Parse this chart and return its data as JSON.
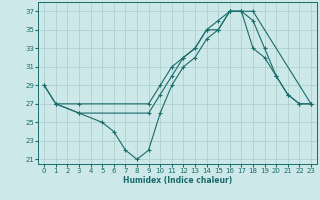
{
  "xlabel": "Humidex (Indice chaleur)",
  "bg_color": "#cce8e8",
  "line_color": "#1a6b6b",
  "grid_color": "#aacccc",
  "xlim": [
    -0.5,
    23.5
  ],
  "ylim": [
    20.5,
    38.0
  ],
  "xticks": [
    0,
    1,
    2,
    3,
    4,
    5,
    6,
    7,
    8,
    9,
    10,
    11,
    12,
    13,
    14,
    15,
    16,
    17,
    18,
    19,
    20,
    21,
    22,
    23
  ],
  "yticks": [
    21,
    23,
    25,
    27,
    29,
    31,
    33,
    35,
    37
  ],
  "line1": {
    "x": [
      0,
      1,
      3,
      9,
      10,
      11,
      12,
      13,
      14,
      15,
      16,
      17,
      18,
      23
    ],
    "y": [
      29,
      27,
      27,
      27,
      29,
      31,
      32,
      33,
      35,
      36,
      37,
      37,
      37,
      27
    ]
  },
  "line2": {
    "x": [
      0,
      1,
      3,
      5,
      6,
      7,
      8,
      9,
      10,
      11,
      12,
      13,
      14,
      15,
      16,
      17,
      18,
      19,
      20,
      21,
      22,
      23
    ],
    "y": [
      29,
      27,
      26,
      25,
      24,
      22,
      21,
      22,
      26,
      29,
      31,
      32,
      34,
      35,
      37,
      37,
      36,
      33,
      30,
      28,
      27,
      27
    ]
  },
  "line3": {
    "x": [
      1,
      3,
      9,
      10,
      11,
      12,
      13,
      14,
      15,
      16,
      17,
      18,
      19,
      20,
      21,
      22,
      23
    ],
    "y": [
      27,
      26,
      26,
      28,
      30,
      32,
      33,
      35,
      35,
      37,
      37,
      33,
      32,
      30,
      28,
      27,
      27
    ]
  }
}
